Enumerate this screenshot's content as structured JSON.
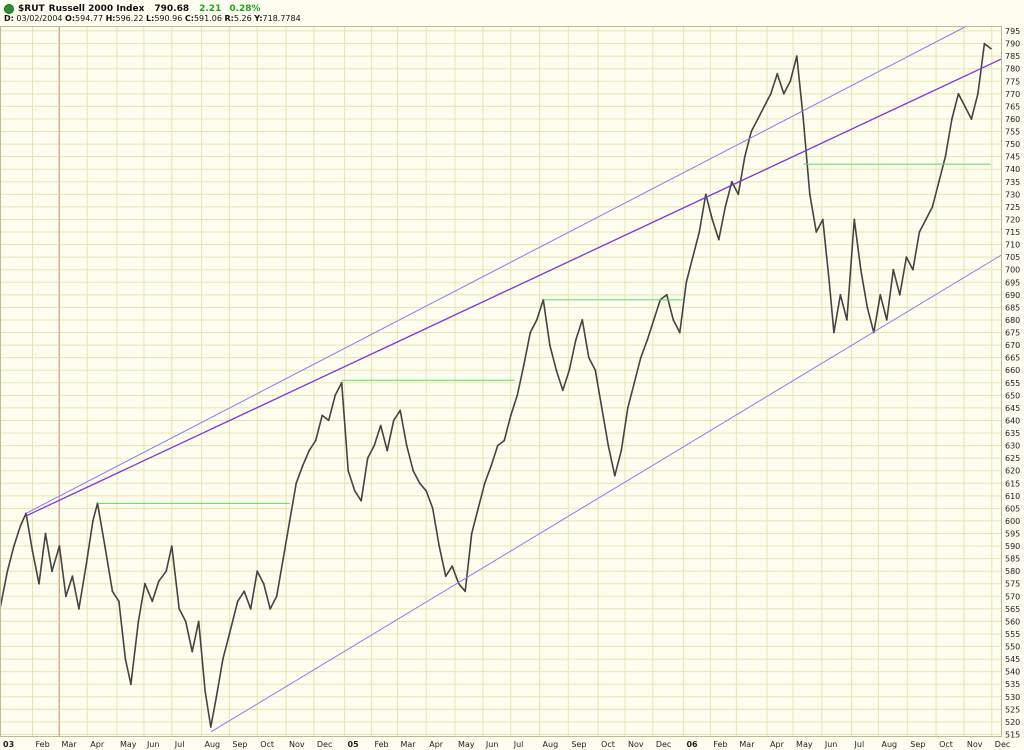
{
  "header": {
    "symbol": "$RUT",
    "name": "Russell 2000 Index",
    "last": "790.68",
    "change": "2.21",
    "change_pct": "0.28%",
    "ohlc": {
      "date_label": "D:",
      "date": "03/02/2004",
      "open_label": "O:",
      "open": "594.77",
      "high_label": "H:",
      "high": "596.22",
      "low_label": "L:",
      "low": "590.96",
      "close_label": "C:",
      "close": "591.06",
      "range_label": "R:",
      "range": "5.26",
      "y_label": "Y:",
      "y": "718.7784"
    }
  },
  "colors": {
    "background": "#fdfdf0",
    "grid": "#e8e5b0",
    "price": "#444444",
    "channel": "#8a7bf0",
    "trendline": "#7f38d9",
    "support": "#55dd55",
    "cursor": "#d9a0a0"
  },
  "chart_data": {
    "type": "line",
    "title": "$RUT Russell 2000 Index",
    "xlabel": "",
    "ylabel": "",
    "ylim": [
      514,
      797
    ],
    "xlim": [
      "2003-12-29",
      "2006-12-12"
    ],
    "y_tick_start": 515,
    "y_tick_step": 5,
    "y_tick_end": 795,
    "x_ticks": [
      {
        "label": "03",
        "date": "2003-12-29",
        "bold": true
      },
      {
        "label": "Feb",
        "date": "2004-02-02"
      },
      {
        "label": "Mar",
        "date": "2004-03-01"
      },
      {
        "label": "Apr",
        "date": "2004-04-01"
      },
      {
        "label": "May",
        "date": "2004-05-03"
      },
      {
        "label": "Jun",
        "date": "2004-06-01"
      },
      {
        "label": "Jul",
        "date": "2004-07-01"
      },
      {
        "label": "Aug",
        "date": "2004-08-02"
      },
      {
        "label": "Sep",
        "date": "2004-09-01"
      },
      {
        "label": "Oct",
        "date": "2004-10-01"
      },
      {
        "label": "Nov",
        "date": "2004-11-01"
      },
      {
        "label": "Dec",
        "date": "2004-12-01"
      },
      {
        "label": "05",
        "date": "2005-01-03",
        "bold": true
      },
      {
        "label": "Feb",
        "date": "2005-02-01"
      },
      {
        "label": "Mar",
        "date": "2005-03-01"
      },
      {
        "label": "Apr",
        "date": "2005-04-01"
      },
      {
        "label": "May",
        "date": "2005-05-02"
      },
      {
        "label": "Jun",
        "date": "2005-06-01"
      },
      {
        "label": "Jul",
        "date": "2005-07-01"
      },
      {
        "label": "Aug",
        "date": "2005-08-01"
      },
      {
        "label": "Sep",
        "date": "2005-09-01"
      },
      {
        "label": "Oct",
        "date": "2005-10-03"
      },
      {
        "label": "Nov",
        "date": "2005-11-01"
      },
      {
        "label": "Dec",
        "date": "2005-12-01"
      },
      {
        "label": "06",
        "date": "2006-01-03",
        "bold": true
      },
      {
        "label": "Feb",
        "date": "2006-02-01"
      },
      {
        "label": "Mar",
        "date": "2006-03-01"
      },
      {
        "label": "Apr",
        "date": "2006-04-03"
      },
      {
        "label": "May",
        "date": "2006-05-01"
      },
      {
        "label": "Jun",
        "date": "2006-06-01"
      },
      {
        "label": "Jul",
        "date": "2006-07-03"
      },
      {
        "label": "Aug",
        "date": "2006-08-01"
      },
      {
        "label": "Sep",
        "date": "2006-09-01"
      },
      {
        "label": "Oct",
        "date": "2006-10-02"
      },
      {
        "label": "Nov",
        "date": "2006-11-01"
      },
      {
        "label": "Dec",
        "date": "2006-12-01"
      }
    ],
    "cursor_date": "2004-03-02",
    "series": [
      {
        "kind": "price",
        "points": [
          [
            "2003-12-29",
            565
          ],
          [
            "2004-01-06",
            580
          ],
          [
            "2004-01-13",
            590
          ],
          [
            "2004-01-20",
            598
          ],
          [
            "2004-01-26",
            603
          ],
          [
            "2004-02-02",
            588
          ],
          [
            "2004-02-09",
            575
          ],
          [
            "2004-02-16",
            595
          ],
          [
            "2004-02-23",
            580
          ],
          [
            "2004-03-02",
            590
          ],
          [
            "2004-03-09",
            570
          ],
          [
            "2004-03-16",
            578
          ],
          [
            "2004-03-23",
            565
          ],
          [
            "2004-03-31",
            583
          ],
          [
            "2004-04-07",
            600
          ],
          [
            "2004-04-12",
            607
          ],
          [
            "2004-04-20",
            590
          ],
          [
            "2004-04-28",
            572
          ],
          [
            "2004-05-05",
            568
          ],
          [
            "2004-05-12",
            545
          ],
          [
            "2004-05-18",
            535
          ],
          [
            "2004-05-26",
            560
          ],
          [
            "2004-06-02",
            575
          ],
          [
            "2004-06-10",
            568
          ],
          [
            "2004-06-17",
            576
          ],
          [
            "2004-06-25",
            580
          ],
          [
            "2004-07-01",
            590
          ],
          [
            "2004-07-09",
            565
          ],
          [
            "2004-07-16",
            560
          ],
          [
            "2004-07-23",
            548
          ],
          [
            "2004-07-30",
            560
          ],
          [
            "2004-08-06",
            532
          ],
          [
            "2004-08-12",
            518
          ],
          [
            "2004-08-18",
            530
          ],
          [
            "2004-08-25",
            545
          ],
          [
            "2004-09-01",
            555
          ],
          [
            "2004-09-10",
            568
          ],
          [
            "2004-09-17",
            572
          ],
          [
            "2004-09-24",
            565
          ],
          [
            "2004-10-01",
            580
          ],
          [
            "2004-10-08",
            575
          ],
          [
            "2004-10-15",
            565
          ],
          [
            "2004-10-22",
            570
          ],
          [
            "2004-10-29",
            585
          ],
          [
            "2004-11-05",
            600
          ],
          [
            "2004-11-12",
            615
          ],
          [
            "2004-11-19",
            622
          ],
          [
            "2004-11-26",
            628
          ],
          [
            "2004-12-03",
            632
          ],
          [
            "2004-12-10",
            642
          ],
          [
            "2004-12-17",
            640
          ],
          [
            "2004-12-24",
            650
          ],
          [
            "2004-12-31",
            655
          ],
          [
            "2005-01-07",
            620
          ],
          [
            "2005-01-14",
            612
          ],
          [
            "2005-01-21",
            608
          ],
          [
            "2005-01-28",
            625
          ],
          [
            "2005-02-04",
            630
          ],
          [
            "2005-02-11",
            638
          ],
          [
            "2005-02-18",
            628
          ],
          [
            "2005-02-25",
            640
          ],
          [
            "2005-03-04",
            644
          ],
          [
            "2005-03-11",
            630
          ],
          [
            "2005-03-18",
            620
          ],
          [
            "2005-03-25",
            615
          ],
          [
            "2005-04-01",
            612
          ],
          [
            "2005-04-08",
            605
          ],
          [
            "2005-04-15",
            590
          ],
          [
            "2005-04-22",
            578
          ],
          [
            "2005-04-29",
            582
          ],
          [
            "2005-05-06",
            575
          ],
          [
            "2005-05-13",
            572
          ],
          [
            "2005-05-20",
            595
          ],
          [
            "2005-05-27",
            605
          ],
          [
            "2005-06-03",
            615
          ],
          [
            "2005-06-10",
            622
          ],
          [
            "2005-06-17",
            630
          ],
          [
            "2005-06-24",
            632
          ],
          [
            "2005-07-01",
            642
          ],
          [
            "2005-07-08",
            650
          ],
          [
            "2005-07-15",
            662
          ],
          [
            "2005-07-22",
            675
          ],
          [
            "2005-07-29",
            680
          ],
          [
            "2005-08-05",
            688
          ],
          [
            "2005-08-12",
            670
          ],
          [
            "2005-08-19",
            660
          ],
          [
            "2005-08-26",
            652
          ],
          [
            "2005-09-02",
            660
          ],
          [
            "2005-09-09",
            672
          ],
          [
            "2005-09-16",
            680
          ],
          [
            "2005-09-23",
            665
          ],
          [
            "2005-09-30",
            660
          ],
          [
            "2005-10-07",
            645
          ],
          [
            "2005-10-14",
            630
          ],
          [
            "2005-10-21",
            618
          ],
          [
            "2005-10-28",
            628
          ],
          [
            "2005-11-04",
            645
          ],
          [
            "2005-11-11",
            655
          ],
          [
            "2005-11-18",
            665
          ],
          [
            "2005-11-25",
            672
          ],
          [
            "2005-12-02",
            680
          ],
          [
            "2005-12-09",
            688
          ],
          [
            "2005-12-16",
            690
          ],
          [
            "2005-12-23",
            680
          ],
          [
            "2005-12-30",
            675
          ],
          [
            "2006-01-06",
            695
          ],
          [
            "2006-01-13",
            705
          ],
          [
            "2006-01-20",
            715
          ],
          [
            "2006-01-27",
            730
          ],
          [
            "2006-02-03",
            720
          ],
          [
            "2006-02-10",
            712
          ],
          [
            "2006-02-17",
            725
          ],
          [
            "2006-02-24",
            735
          ],
          [
            "2006-03-03",
            730
          ],
          [
            "2006-03-10",
            745
          ],
          [
            "2006-03-17",
            755
          ],
          [
            "2006-03-24",
            760
          ],
          [
            "2006-03-31",
            765
          ],
          [
            "2006-04-07",
            770
          ],
          [
            "2006-04-14",
            778
          ],
          [
            "2006-04-21",
            770
          ],
          [
            "2006-04-28",
            775
          ],
          [
            "2006-05-05",
            785
          ],
          [
            "2006-05-12",
            760
          ],
          [
            "2006-05-19",
            730
          ],
          [
            "2006-05-26",
            715
          ],
          [
            "2006-06-02",
            720
          ],
          [
            "2006-06-09",
            695
          ],
          [
            "2006-06-14",
            675
          ],
          [
            "2006-06-21",
            690
          ],
          [
            "2006-06-28",
            680
          ],
          [
            "2006-07-06",
            720
          ],
          [
            "2006-07-13",
            700
          ],
          [
            "2006-07-20",
            685
          ],
          [
            "2006-07-27",
            675
          ],
          [
            "2006-08-03",
            690
          ],
          [
            "2006-08-10",
            680
          ],
          [
            "2006-08-17",
            700
          ],
          [
            "2006-08-24",
            690
          ],
          [
            "2006-08-31",
            705
          ],
          [
            "2006-09-07",
            700
          ],
          [
            "2006-09-14",
            715
          ],
          [
            "2006-09-21",
            720
          ],
          [
            "2006-09-28",
            725
          ],
          [
            "2006-10-05",
            735
          ],
          [
            "2006-10-12",
            745
          ],
          [
            "2006-10-19",
            760
          ],
          [
            "2006-10-26",
            770
          ],
          [
            "2006-11-02",
            765
          ],
          [
            "2006-11-09",
            760
          ],
          [
            "2006-11-16",
            770
          ],
          [
            "2006-11-23",
            790
          ],
          [
            "2006-11-30",
            788
          ]
        ]
      }
    ],
    "trendlines": [
      {
        "kind": "channel",
        "from": [
          "2004-01-26",
          603
        ],
        "to": [
          "2006-11-04",
          797
        ]
      },
      {
        "kind": "trendline",
        "from": [
          "2004-01-26",
          602
        ],
        "to": [
          "2006-12-12",
          784
        ]
      },
      {
        "kind": "channel",
        "from": [
          "2004-08-12",
          516
        ],
        "to": [
          "2006-12-12",
          706
        ]
      },
      {
        "kind": "support",
        "from": [
          "2004-04-12",
          607
        ],
        "to": [
          "2004-11-05",
          607
        ]
      },
      {
        "kind": "support",
        "from": [
          "2004-12-31",
          656
        ],
        "to": [
          "2005-07-05",
          656
        ]
      },
      {
        "kind": "support",
        "from": [
          "2005-08-05",
          688
        ],
        "to": [
          "2006-01-03",
          688
        ]
      },
      {
        "kind": "support",
        "from": [
          "2006-05-12",
          742
        ],
        "to": [
          "2006-11-30",
          742
        ]
      }
    ]
  }
}
